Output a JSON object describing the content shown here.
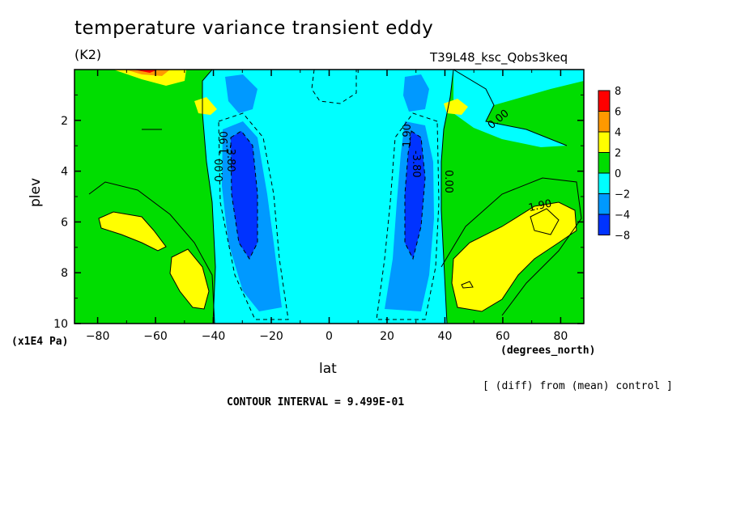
{
  "header": {
    "title": "temperature variance transient eddy",
    "units": "(K2)",
    "run": "T39L48_ksc_Qobs3keq"
  },
  "footer": {
    "diff_note": "[ (diff) from (mean) control ]",
    "contour_interval": "CONTOUR INTERVAL = 9.499E-01"
  },
  "chart_data": {
    "type": "heatmap",
    "title": "temperature variance transient eddy",
    "xlabel": "lat",
    "xunits": "(degrees_north)",
    "ylabel": "plev",
    "yunits": "(x1E4 Pa)",
    "xlim": [
      -88,
      88
    ],
    "ylim": [
      0,
      10
    ],
    "y_inverted": true,
    "x_ticks": [
      -80,
      -60,
      -40,
      -20,
      0,
      20,
      40,
      60,
      80
    ],
    "y_ticks": [
      2,
      4,
      6,
      8,
      10
    ],
    "contour_labels": [
      "0.00",
      "1.90",
      "-3.80",
      "1.90",
      "-3.80",
      "0.00",
      "0.00",
      "1.90"
    ],
    "colorbar": {
      "levels": [
        "8",
        "6",
        "4",
        "2",
        "0",
        "-2",
        "-4",
        "-8"
      ],
      "colors": [
        "#ff0000",
        "#ff9900",
        "#ffff00",
        "#00dd00",
        "#00ffff",
        "#0099ff",
        "#0033ff"
      ]
    }
  }
}
